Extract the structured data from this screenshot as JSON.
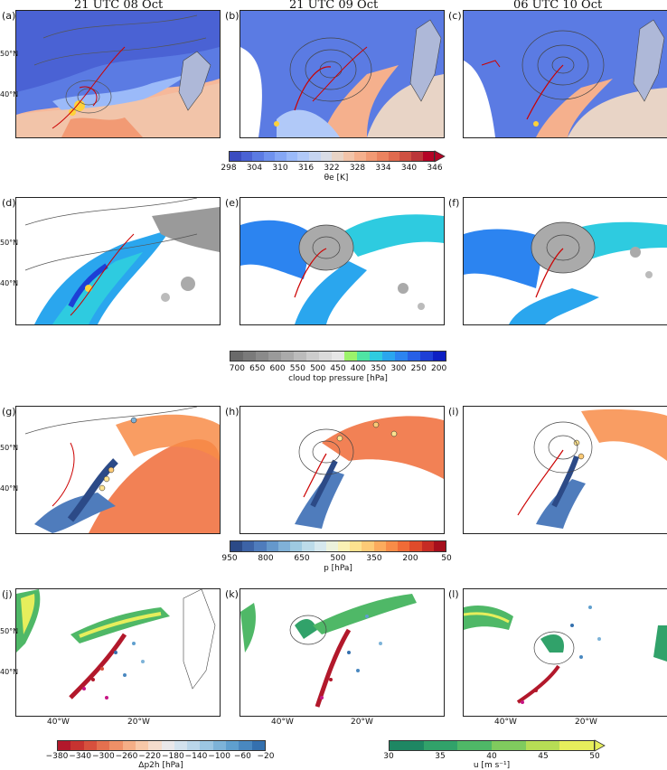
{
  "columns": [
    "21 UTC 08 Oct",
    "21 UTC 09 Oct",
    "06 UTC 10 Oct"
  ],
  "panel_labels": [
    "(a)",
    "(b)",
    "(c)",
    "(d)",
    "(e)",
    "(f)",
    "(g)",
    "(h)",
    "(i)",
    "(j)",
    "(k)",
    "(l)"
  ],
  "lat_labels": [
    "50°N",
    "40°N"
  ],
  "lon_labels": [
    "40°W",
    "20°W"
  ],
  "colorbars": {
    "theta_e": {
      "ticks": [
        "298",
        "304",
        "310",
        "316",
        "322",
        "328",
        "334",
        "340",
        "346"
      ],
      "label": "θe [K]",
      "colors": [
        "#3b4cc0",
        "#4a62d4",
        "#5b7be3",
        "#6f92ee",
        "#85a7f5",
        "#9bbaf9",
        "#b1c9f8",
        "#c6d5f1",
        "#d9dce5",
        "#e8d4c6",
        "#f2c4a9",
        "#f5b08d",
        "#f29a74",
        "#eb835f",
        "#df6a4e",
        "#cf5142",
        "#bb3639",
        "#b40426"
      ],
      "extend": "max"
    },
    "ctp": {
      "ticks": [
        "700",
        "650",
        "600",
        "550",
        "500",
        "450",
        "400",
        "350",
        "300",
        "250",
        "200"
      ],
      "label": "cloud top pressure [hPa]",
      "colors": [
        "#6a6a6a",
        "#7a7a7a",
        "#8a8a8a",
        "#9a9a9a",
        "#aaaaaa",
        "#bbbbbb",
        "#cccccc",
        "#dadada",
        "#e6e6e6",
        "#9cf26a",
        "#4fe4a4",
        "#2ecbe0",
        "#2aa6ee",
        "#2c84f0",
        "#2760e6",
        "#1d3fd6",
        "#0d1fc3"
      ]
    },
    "p": {
      "ticks": [
        "950",
        "800",
        "650",
        "500",
        "350",
        "200",
        "50"
      ],
      "label": "p [hPa]",
      "colors": [
        "#2c4a87",
        "#3d63a6",
        "#4f7cbc",
        "#6598cb",
        "#80b1d7",
        "#9ecae1",
        "#bcdbe9",
        "#d6e8ee",
        "#ecf2dc",
        "#faf1b5",
        "#fde28f",
        "#fdca76",
        "#fcab5d",
        "#f88c48",
        "#f06b37",
        "#e04b2b",
        "#c62b24",
        "#a50f1d"
      ]
    },
    "dp": {
      "ticks": [
        "−380",
        "−340",
        "−300",
        "−260",
        "−220",
        "−180",
        "−140",
        "−100",
        "−60",
        "−20"
      ],
      "label": "Δp2h [hPa]",
      "colors": [
        "#b2182b",
        "#c73330",
        "#d7503d",
        "#e4704f",
        "#ef9067",
        "#f5ae86",
        "#f8c8a8",
        "#f5dccc",
        "#eae8ea",
        "#d3e2ee",
        "#bad6ea",
        "#9cc6e2",
        "#7db3d8",
        "#5f9fce",
        "#4988c0",
        "#3470ae"
      ]
    },
    "u": {
      "ticks": [
        "30",
        "35",
        "40",
        "45",
        "50"
      ],
      "label": "u [m s⁻¹]",
      "colors": [
        "#1e8763",
        "#31a26a",
        "#4fb867",
        "#80cb5e",
        "#b6dd55",
        "#e6ee5c"
      ],
      "extend": "max"
    }
  },
  "chart_data": [
    {
      "type": "heatmap",
      "panels": [
        "(a)",
        "(b)",
        "(c)"
      ],
      "field": "θe",
      "unit": "K",
      "range": [
        298,
        346
      ],
      "overlay": [
        "sea level pressure contours",
        "red contours"
      ]
    },
    {
      "type": "heatmap",
      "panels": [
        "(d)",
        "(e)",
        "(f)"
      ],
      "field": "cloud top pressure",
      "unit": "hPa",
      "range": [
        700,
        200
      ]
    },
    {
      "type": "line",
      "panels": [
        "(g)",
        "(h)",
        "(i)"
      ],
      "field": "trajectory pressure",
      "unit": "hPa",
      "range": [
        950,
        50
      ]
    },
    {
      "type": "scatter",
      "panels": [
        "(j)",
        "(k)",
        "(l)"
      ],
      "field": "Δp2h",
      "unit": "hPa",
      "range": [
        -380,
        -20
      ],
      "overlay": [
        "u",
        "m s⁻¹",
        [
          30,
          50
        ]
      ]
    }
  ]
}
